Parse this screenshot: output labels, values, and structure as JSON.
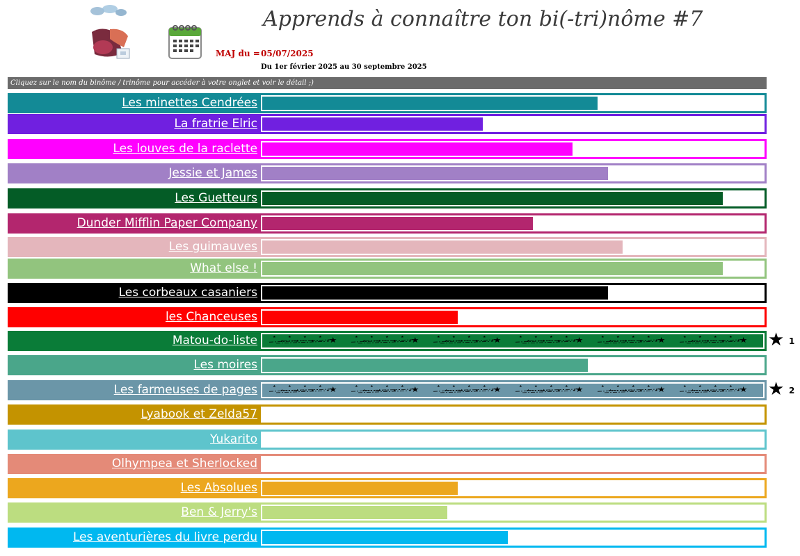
{
  "header": {
    "title": "Apprends à connaître ton bi(-tri)nôme #7",
    "maj_label": "MAJ du =",
    "maj_date": "05/07/2025",
    "period": "Du 1er février 2025 au 30 septembre 2025",
    "logo_icon": "binome-logo-icon",
    "calendar_icon": "calendar-icon"
  },
  "banner": "Cliquez sur le nom du binôme / trinôme pour accéder à votre onglet et voir le détail ;)",
  "teams": [
    {
      "name": "Les minettes Cendrées",
      "color": "#138a96",
      "progress": 0.67
    },
    {
      "name": "La fratrie Elric",
      "color": "#7020e0",
      "progress": 0.44
    },
    {
      "name": "Les louves de la raclette",
      "color": "#ff00ff",
      "progress": 0.62
    },
    {
      "name": "Jessie et James",
      "color": "#a180c6",
      "progress": 0.69
    },
    {
      "name": "Les Guetteurs",
      "color": "#045c26",
      "progress": 0.92
    },
    {
      "name": "Dunder Mifflin Paper Company",
      "color": "#b3266e",
      "progress": 0.54
    },
    {
      "name": "Les guimauves",
      "color": "#e4b6bc",
      "progress": 0.72
    },
    {
      "name": "What else !",
      "color": "#92c47e",
      "progress": 0.92
    },
    {
      "name": "Les corbeaux casaniers",
      "color": "#000000",
      "progress": 0.69
    },
    {
      "name": "les Chanceuses",
      "color": "#ff0000",
      "progress": 0.39
    },
    {
      "name": "Matou-do-liste",
      "color": "#0a7c38",
      "progress": 1.0,
      "completed": true,
      "rank": "1"
    },
    {
      "name": "Les moires",
      "color": "#4aa68a",
      "progress": 0.65
    },
    {
      "name": "Les farmeuses de pages",
      "color": "#6b96a8",
      "progress": 1.0,
      "completed": true,
      "rank": "2"
    },
    {
      "name": "Lyabook et Zelda57",
      "color": "#c49300",
      "progress": 0.0
    },
    {
      "name": "Yukarito",
      "color": "#5ec4cc",
      "progress": 0.0
    },
    {
      "name": "Olhympea et Sherlocked",
      "color": "#e48a78",
      "progress": 0.0
    },
    {
      "name": "Les Absolues",
      "color": "#eca71e",
      "progress": 0.39
    },
    {
      "name": "Ben & Jerry's",
      "color": "#bcdd80",
      "progress": 0.37
    },
    {
      "name": "Les aventurières du livre perdu",
      "color": "#00b8f0",
      "progress": 0.49
    }
  ],
  "completion_icon": "star-icon"
}
